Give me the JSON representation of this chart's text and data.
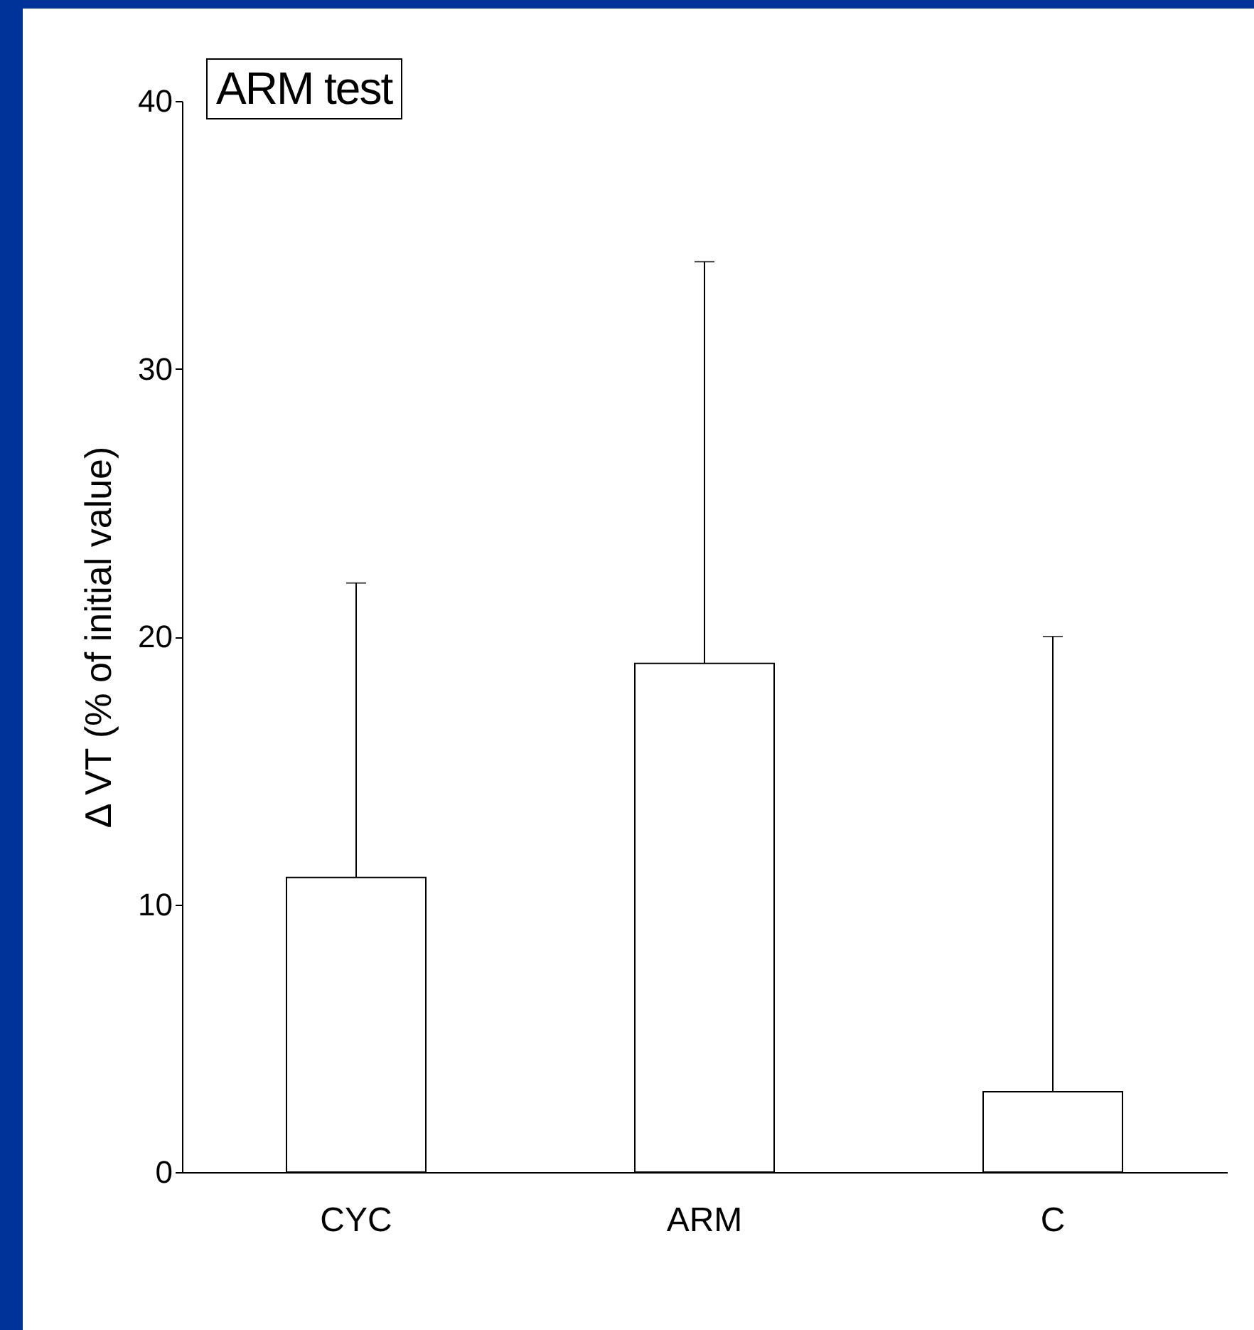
{
  "chart_data": {
    "type": "bar",
    "title": "ARM test",
    "ylabel": "Δ VT (% of initial value)",
    "categories": [
      "CYC",
      "ARM",
      "C"
    ],
    "series": [
      {
        "color": "#ffffff",
        "values": [
          11,
          19,
          3
        ],
        "errors": [
          [
            11,
            22
          ],
          [
            19,
            34
          ],
          [
            3,
            20
          ]
        ]
      }
    ],
    "ylim": [
      0,
      40
    ],
    "yticks": [
      0,
      10,
      20,
      30,
      40
    ],
    "grid": false
  }
}
